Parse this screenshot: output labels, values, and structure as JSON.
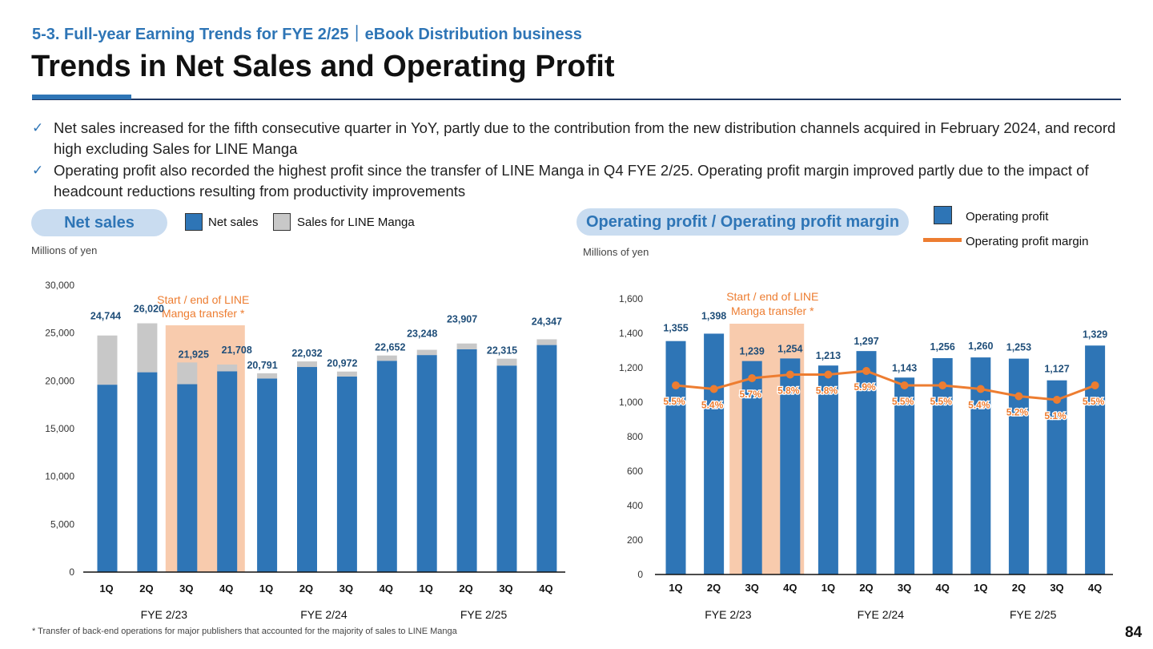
{
  "header": {
    "subtitle": "5-3. Full-year Earning Trends for FYE 2/25｜eBook Distribution business",
    "title": "Trends in Net Sales and Operating Profit"
  },
  "bullets": [
    {
      "check": "✓",
      "text": "Net sales increased for the fifth consecutive quarter in YoY, partly due to the contribution from the new distribution channels acquired in February 2024, and record high excluding Sales for LINE Manga"
    },
    {
      "check": "✓",
      "text": "Operating profit also recorded the highest profit since the transfer of LINE Manga in Q4 FYE 2/25. Operating profit margin improved partly due to the impact of headcount reductions resulting from productivity improvements"
    }
  ],
  "left_panel": {
    "pill": "Net sales",
    "legend_net_sales": "Net sales",
    "legend_line_manga": "Sales for LINE Manga",
    "units": "Millions of yen"
  },
  "right_panel": {
    "pill": "Operating profit / Operating profit margin",
    "legend_op": "Operating profit",
    "legend_margin": "Operating profit margin",
    "units": "Millions of yen"
  },
  "footnote": "* Transfer of back-end operations for major publishers that accounted for the majority of sales to LINE Manga",
  "page_number": "84",
  "colors": {
    "blue": "#2e75b6",
    "gray": "#c8c8c8",
    "orange": "#ed7d31",
    "band": "#f8cbad",
    "label_blue": "#1f4e79"
  },
  "chart_data": [
    {
      "type": "bar",
      "stacked": true,
      "categories": [
        "1Q",
        "2Q",
        "3Q",
        "4Q",
        "1Q",
        "2Q",
        "3Q",
        "4Q",
        "1Q",
        "2Q",
        "3Q",
        "4Q"
      ],
      "groups": [
        "FYE 2/23",
        "FYE 2/24",
        "FYE 2/25"
      ],
      "series": [
        {
          "name": "Net sales",
          "values": [
            19600,
            20900,
            19650,
            21000,
            20250,
            21450,
            20450,
            22100,
            22700,
            23300,
            21600,
            23750
          ]
        },
        {
          "name": "Sales for LINE Manga",
          "values": [
            5144,
            5120,
            2275,
            708,
            541,
            582,
            522,
            552,
            548,
            607,
            715,
            597
          ]
        }
      ],
      "totals": [
        "24,744",
        "26,020",
        "21,925",
        "21,708",
        "20,791",
        "22,032",
        "20,972",
        "22,652",
        "23,248",
        "23,907",
        "22,315",
        "24,347"
      ],
      "ylim": [
        0,
        30000
      ],
      "yticks": [
        "0",
        "5,000",
        "10,000",
        "15,000",
        "20,000",
        "25,000",
        "30,000"
      ],
      "annotation": "Start / end of LINE Manga transfer *"
    },
    {
      "type": "bar+line",
      "categories": [
        "1Q",
        "2Q",
        "3Q",
        "4Q",
        "1Q",
        "2Q",
        "3Q",
        "4Q",
        "1Q",
        "2Q",
        "3Q",
        "4Q"
      ],
      "groups": [
        "FYE 2/23",
        "FYE 2/24",
        "FYE 2/25"
      ],
      "series": [
        {
          "name": "Operating profit",
          "values": [
            1355,
            1398,
            1239,
            1254,
            1213,
            1297,
            1143,
            1256,
            1260,
            1253,
            1127,
            1329
          ]
        },
        {
          "name": "Operating profit margin",
          "values": [
            5.5,
            5.4,
            5.7,
            5.8,
            5.8,
            5.9,
            5.5,
            5.5,
            5.4,
            5.2,
            5.1,
            5.5
          ]
        }
      ],
      "bar_labels": [
        "1,355",
        "1,398",
        "1,239",
        "1,254",
        "1,213",
        "1,297",
        "1,143",
        "1,256",
        "1,260",
        "1,253",
        "1,127",
        "1,329"
      ],
      "margin_labels": [
        "5.5%",
        "5.4%",
        "5.7%",
        "5.8%",
        "5.8%",
        "5.9%",
        "5.5%",
        "5.5%",
        "5.4%",
        "5.2%",
        "5.1%",
        "5.5%"
      ],
      "ylim": [
        0,
        1600
      ],
      "yticks": [
        "0",
        "200",
        "400",
        "600",
        "800",
        "1,000",
        "1,200",
        "1,400",
        "1,600"
      ],
      "annotation": "Start / end of LINE Manga transfer *"
    }
  ]
}
